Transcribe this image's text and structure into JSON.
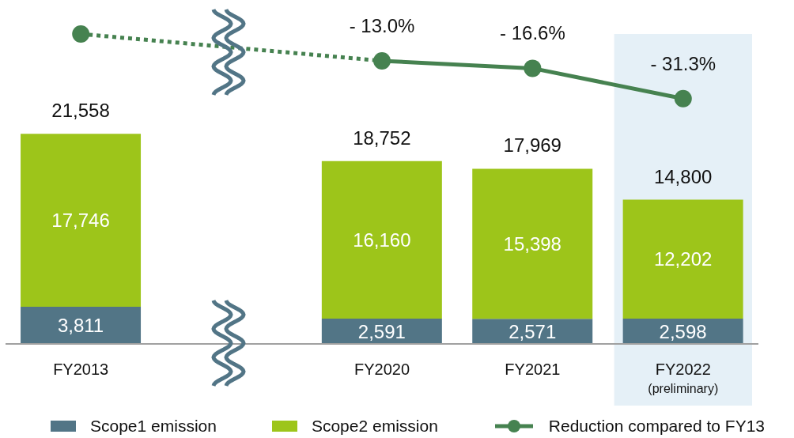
{
  "chart_data": {
    "type": "bar",
    "stacked": true,
    "categories": [
      "FY2013",
      null,
      "FY2020",
      "FY2021",
      "FY2022\n(preliminary)"
    ],
    "series": [
      {
        "name": "Scope1 emission",
        "color": "#527586",
        "axis": "y2",
        "values": [
          3811,
          null,
          2591,
          2571,
          2598
        ],
        "value_labels": [
          "3,811",
          null,
          "2,591",
          "2,571",
          "2,598"
        ]
      },
      {
        "name": "Scope2 emission",
        "color": "#9dc51a",
        "axis": "y2",
        "values": [
          17746,
          null,
          16160,
          15398,
          12202
        ],
        "value_labels": [
          "17,746",
          null,
          "16,160",
          "15,398",
          "12,202"
        ]
      },
      {
        "type": "line",
        "color": "#468250",
        "x": [
          "FY2013",
          "FY2020"
        ],
        "values": [
          0,
          -13.0
        ],
        "line_style": "dotted"
      },
      {
        "name": "Reduction compared to FY13",
        "type": "line",
        "color": "#468250",
        "values": [
          0,
          null,
          -13.0,
          -16.6,
          -31.3
        ],
        "value_labels": [
          null,
          null,
          "- 13.0%",
          "- 16.6%",
          "- 31.3%"
        ],
        "line_style": "solid",
        "marker": "circle"
      }
    ],
    "totals": [
      "21,558",
      null,
      "18,752",
      "17,969",
      "14,800"
    ],
    "ylim": [
      -150,
      0
    ],
    "tick_labels": "x",
    "bands": [
      {
        "axis": "x",
        "from": "FY2022\n(preliminary)",
        "to": "FY2022\n(preliminary)",
        "color": "#e5f0f7"
      }
    ],
    "legend": "bottom"
  }
}
